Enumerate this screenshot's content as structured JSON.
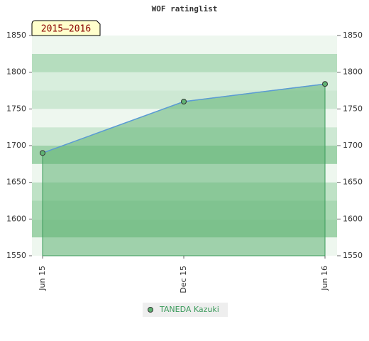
{
  "chart_data": {
    "type": "area",
    "title": "WOF ratinglist",
    "badge": "2015–2016",
    "categories": [
      "Jun 15",
      "Dec 15",
      "Jun 16"
    ],
    "series": [
      {
        "name": "TANEDA Kazuki",
        "color": "#5b9bd5",
        "fill": "#5fb373",
        "values": [
          1690,
          1760,
          1784
        ]
      }
    ],
    "ylim": [
      1550,
      1850
    ],
    "yticks": [
      1550,
      1600,
      1650,
      1700,
      1750,
      1800,
      1850
    ],
    "y2lim": [
      1550,
      1850
    ],
    "y2ticks": [
      1550,
      1600,
      1650,
      1700,
      1750,
      1800,
      1850
    ]
  }
}
